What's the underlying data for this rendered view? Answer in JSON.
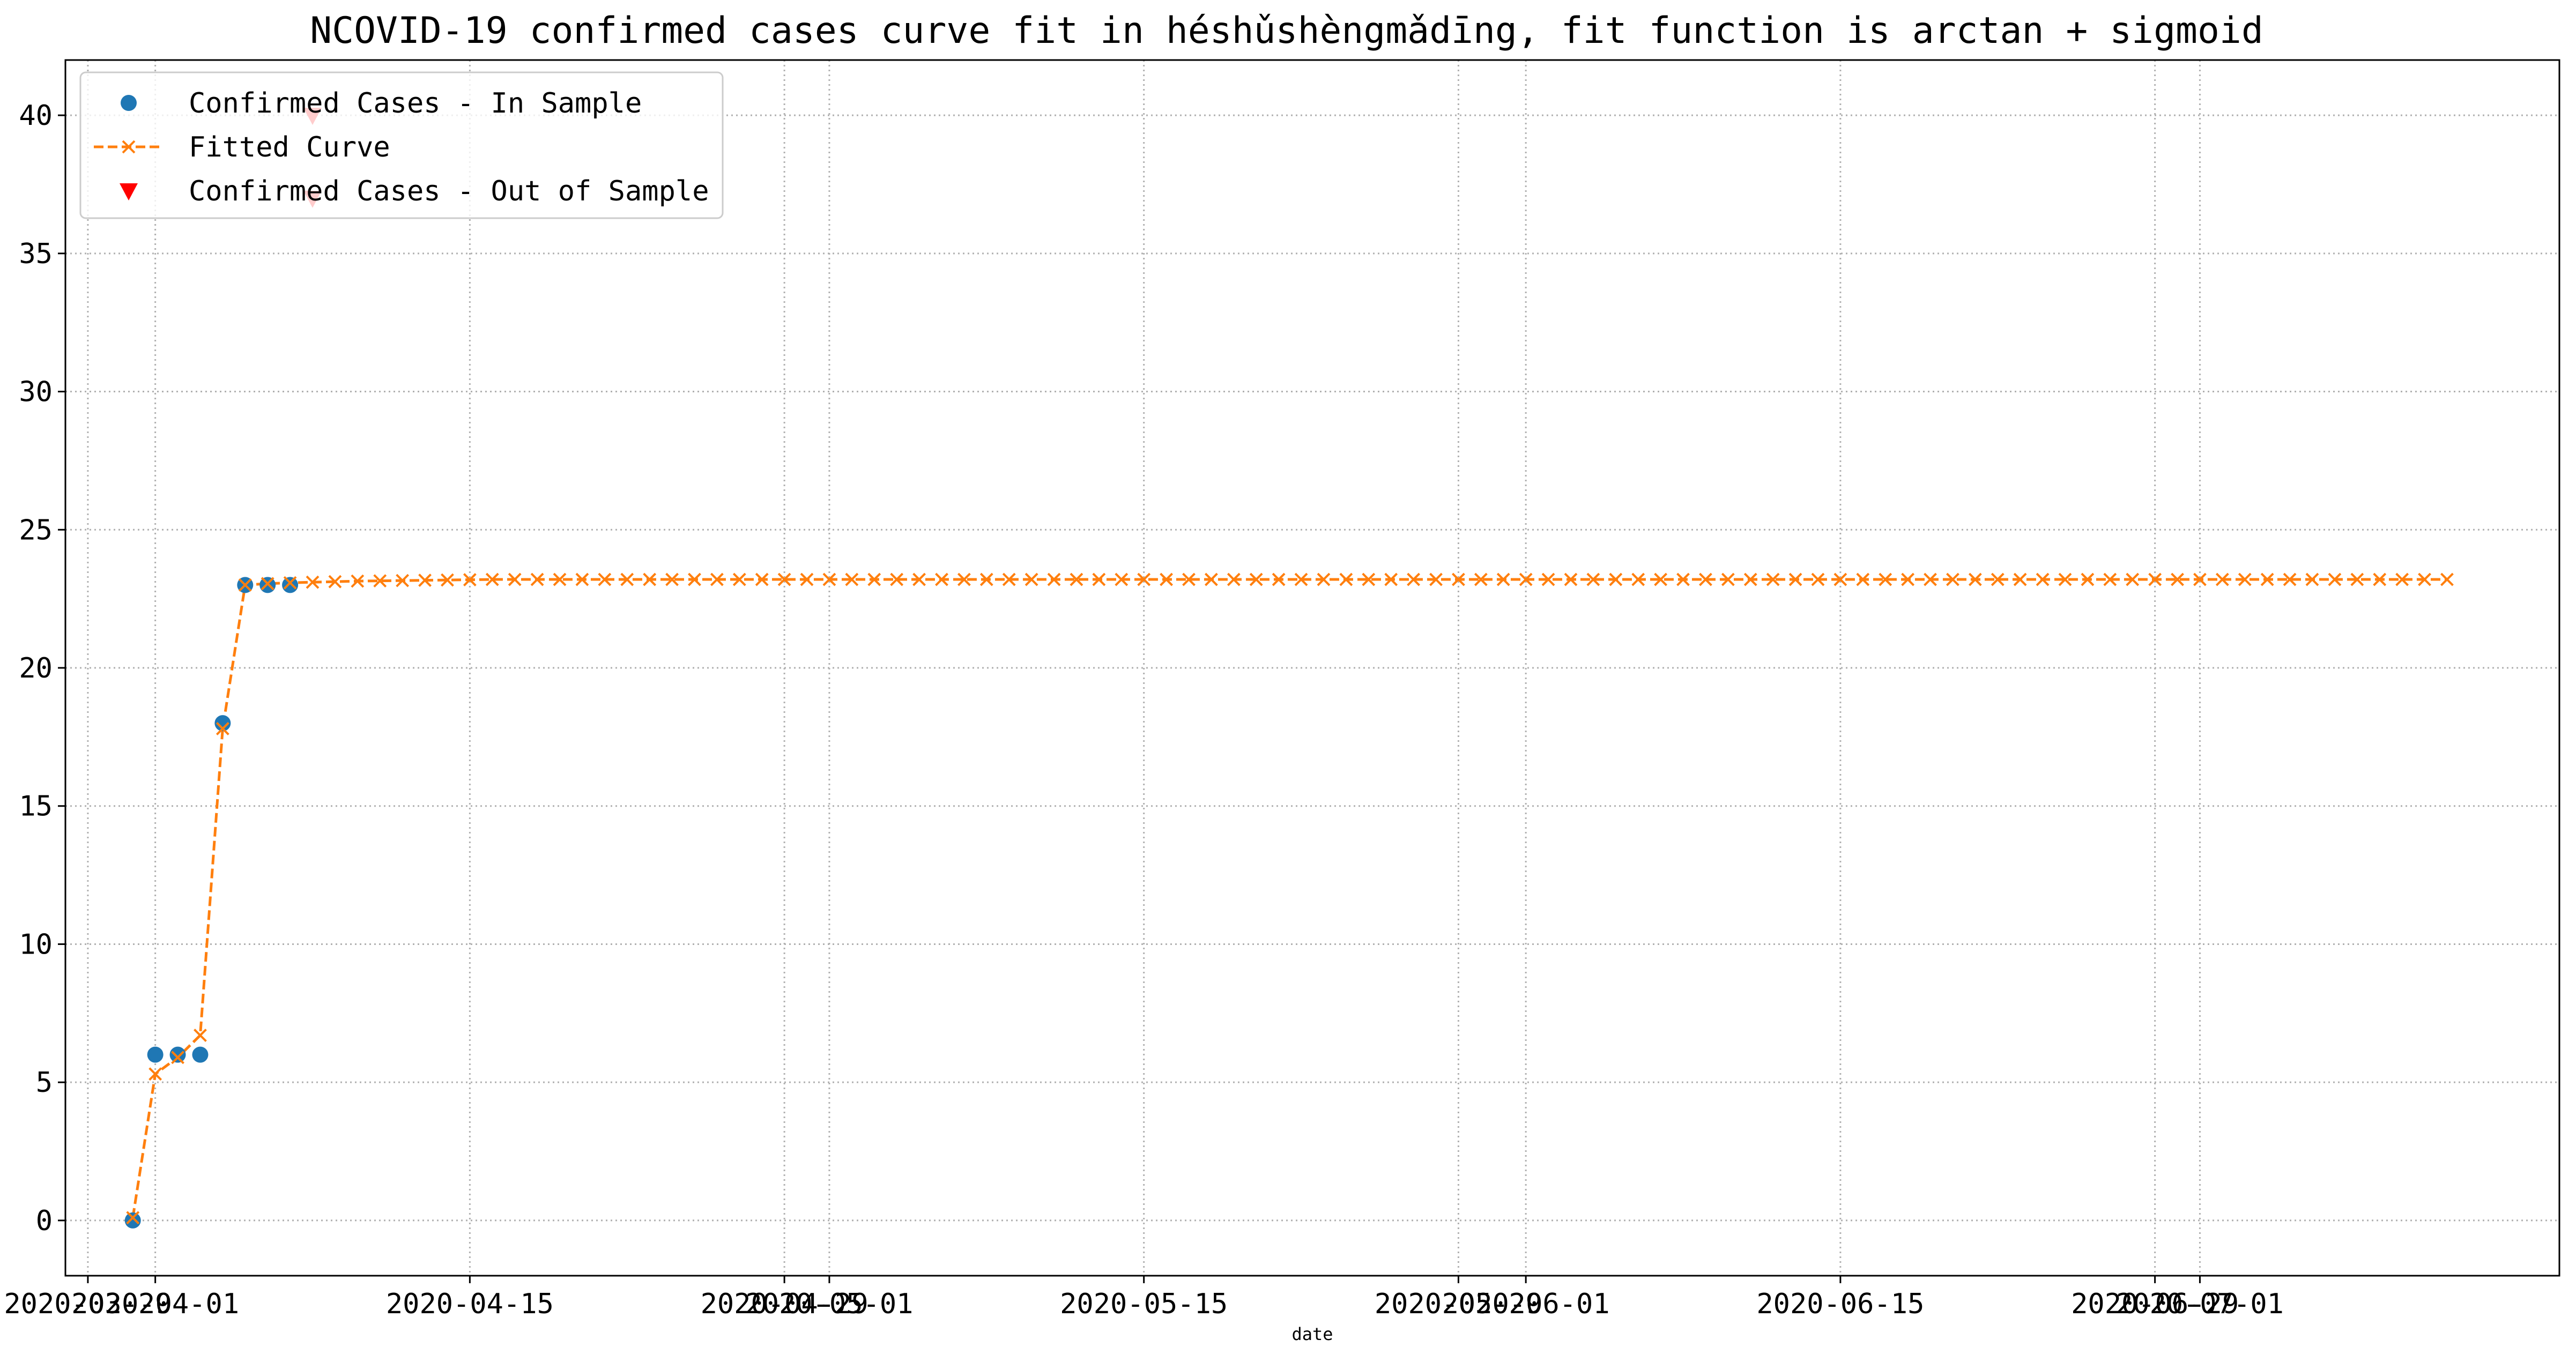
{
  "chart_data": {
    "type": "line",
    "title": "NCOVID-19 confirmed cases curve fit in héshǔshèngmǎdīng, fit function is arctan + sigmoid",
    "xlabel": "date",
    "ylabel": "",
    "x_axis": "date",
    "xlim": [
      "2020-03-28",
      "2020-07-17"
    ],
    "ylim": [
      -2,
      42
    ],
    "grid": true,
    "grid_style": "dotted",
    "legend_position": "top-left",
    "x_tick_labels": [
      "2020-03-29",
      "2020-04-01",
      "2020-04-15",
      "2020-04-29",
      "2020-05-01",
      "2020-05-15",
      "2020-05-29",
      "2020-06-01",
      "2020-06-15",
      "2020-06-29",
      "2020-07-01"
    ],
    "y_ticks": [
      0,
      5,
      10,
      15,
      20,
      25,
      30,
      35,
      40
    ],
    "series": [
      {
        "name": "Confirmed Cases - In Sample",
        "marker": "circle",
        "color": "#1f77b4",
        "x": [
          "2020-03-31",
          "2020-04-01",
          "2020-04-02",
          "2020-04-03",
          "2020-04-04",
          "2020-04-05",
          "2020-04-06",
          "2020-04-07"
        ],
        "y": [
          0,
          6,
          6,
          6,
          18,
          23,
          23,
          23
        ]
      },
      {
        "name": "Fitted Curve",
        "marker": "x",
        "line_style": "dashed",
        "color": "#ff7f0e",
        "x_start": "2020-03-31",
        "x_end": "2020-07-12",
        "x_step_days": 1,
        "y": [
          0.1,
          5.3,
          5.9,
          6.7,
          17.8,
          23.0,
          23.05,
          23.08,
          23.1,
          23.12,
          23.14,
          23.15,
          23.16,
          23.17,
          23.18,
          23.19,
          23.2,
          23.2,
          23.2,
          23.2,
          23.2,
          23.2,
          23.2,
          23.2,
          23.2,
          23.2,
          23.2,
          23.2,
          23.2,
          23.2,
          23.2,
          23.2,
          23.2,
          23.2,
          23.2,
          23.2,
          23.2,
          23.2,
          23.2,
          23.2,
          23.2,
          23.2,
          23.2,
          23.2,
          23.2,
          23.2,
          23.2,
          23.2,
          23.2,
          23.2,
          23.2,
          23.2,
          23.2,
          23.2,
          23.2,
          23.2,
          23.2,
          23.2,
          23.2,
          23.2,
          23.2,
          23.2,
          23.2,
          23.2,
          23.2,
          23.2,
          23.2,
          23.2,
          23.2,
          23.2,
          23.2,
          23.2,
          23.2,
          23.2,
          23.2,
          23.2,
          23.2,
          23.2,
          23.2,
          23.2,
          23.2,
          23.2,
          23.2,
          23.2,
          23.2,
          23.2,
          23.2,
          23.2,
          23.2,
          23.2,
          23.2,
          23.2,
          23.2,
          23.2,
          23.2,
          23.2,
          23.2,
          23.2,
          23.2,
          23.2,
          23.2,
          23.2,
          23.2,
          23.2
        ]
      },
      {
        "name": "Confirmed Cases - Out of Sample",
        "marker": "triangle-down",
        "color": "#ff0000",
        "x": [
          "2020-04-08",
          "2020-04-08"
        ],
        "y": [
          37,
          40
        ]
      }
    ]
  }
}
